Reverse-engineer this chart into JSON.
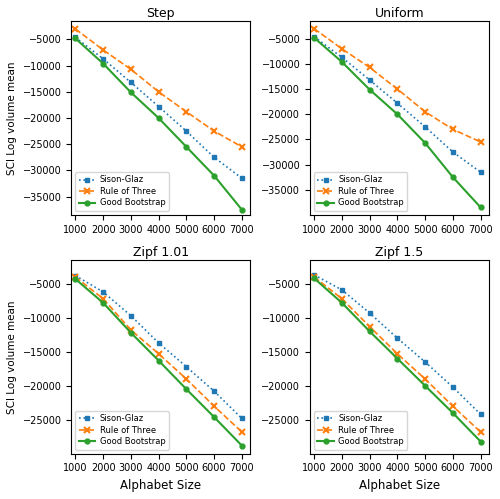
{
  "x": [
    1000,
    2000,
    3000,
    4000,
    5000,
    6000,
    7000
  ],
  "plot_data": {
    "step": {
      "sison_glaz": [
        -4600,
        -8700,
        -13200,
        -17800,
        -22500,
        -27500,
        -31500
      ],
      "rule_of_three": [
        -3000,
        -7000,
        -10700,
        -15000,
        -18800,
        -22500,
        -25500
      ],
      "good_bootstrap": [
        -4800,
        -9600,
        -15100,
        -20000,
        -25500,
        -31000,
        -37500
      ]
    },
    "uniform": {
      "sison_glaz": [
        -4600,
        -8700,
        -13200,
        -17800,
        -22500,
        -27500,
        -31500
      ],
      "rule_of_three": [
        -3000,
        -7000,
        -10700,
        -15000,
        -19500,
        -23000,
        -25500
      ],
      "good_bootstrap": [
        -4800,
        -9600,
        -15100,
        -20000,
        -25700,
        -32500,
        -38500
      ]
    },
    "zipf_101": {
      "sison_glaz": [
        -3800,
        -6200,
        -9700,
        -13700,
        -17200,
        -20800,
        -24800
      ],
      "rule_of_three": [
        -4000,
        -7200,
        -11800,
        -15300,
        -19000,
        -23000,
        -26800
      ],
      "good_bootstrap": [
        -4300,
        -7800,
        -12200,
        -16300,
        -20500,
        -24600,
        -28800
      ]
    },
    "zipf_15": {
      "sison_glaz": [
        -3700,
        -5900,
        -9300,
        -13000,
        -16500,
        -20200,
        -24200
      ],
      "rule_of_three": [
        -4000,
        -7200,
        -11300,
        -15300,
        -19000,
        -23000,
        -26800
      ],
      "good_bootstrap": [
        -4200,
        -7800,
        -12000,
        -16000,
        -20000,
        -24000,
        -28200
      ]
    }
  },
  "subplots": [
    {
      "key": "step",
      "title": "Step",
      "yticks": [
        -5000,
        -10000,
        -15000,
        -20000,
        -25000,
        -30000,
        -35000
      ],
      "ylim": [
        -38500,
        -1500
      ]
    },
    {
      "key": "uniform",
      "title": "Uniform",
      "yticks": [
        -5000,
        -10000,
        -15000,
        -20000,
        -25000,
        -30000,
        -35000
      ],
      "ylim": [
        -40000,
        -1500
      ]
    },
    {
      "key": "zipf_101",
      "title": "Zipf 1.01",
      "yticks": [
        -5000,
        -10000,
        -15000,
        -20000,
        -25000
      ],
      "ylim": [
        -30000,
        -1500
      ]
    },
    {
      "key": "zipf_15",
      "title": "Zipf 1.5",
      "yticks": [
        -5000,
        -10000,
        -15000,
        -20000,
        -25000
      ],
      "ylim": [
        -30000,
        -1500
      ]
    }
  ],
  "xlabel": "Alphabet Size",
  "ylabel": "SCI Log volume mean",
  "legend_labels": [
    "Sison-Glaz",
    "Rule of Three",
    "Good Bootstrap"
  ],
  "sison_color": "#1f77b4",
  "rot_color": "#ff7f0e",
  "bootstrap_color": "#2ca02c",
  "xticks": [
    1000,
    2000,
    3000,
    4000,
    5000,
    6000,
    7000
  ]
}
